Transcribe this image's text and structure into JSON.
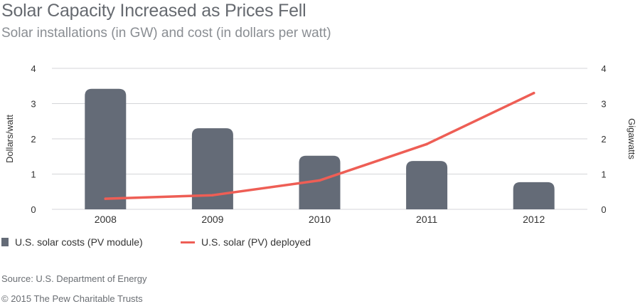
{
  "header": {
    "title": "Solar Capacity Increased as Prices Fell",
    "subtitle": "Solar installations (in GW) and cost (in dollars per watt)"
  },
  "chart_data": {
    "type": "bar",
    "categories": [
      "2008",
      "2009",
      "2010",
      "2011",
      "2012"
    ],
    "series": [
      {
        "name": "U.S. solar costs (PV module)",
        "type": "bar",
        "axis": "left",
        "color": "#646b77",
        "values": [
          3.42,
          2.3,
          1.52,
          1.37,
          0.77
        ]
      },
      {
        "name": "U.S. solar (PV) deployed",
        "type": "line",
        "axis": "right",
        "color": "#ee5e55",
        "values": [
          0.3,
          0.4,
          0.82,
          1.85,
          3.3
        ]
      }
    ],
    "y_left": {
      "label": "Dollars/watt",
      "range": [
        0,
        4
      ],
      "ticks": [
        "0",
        "1",
        "2",
        "3",
        "4"
      ]
    },
    "y_right": {
      "label": "Gigawatts",
      "range": [
        0,
        4
      ],
      "ticks": [
        "0",
        "1",
        "2",
        "3",
        "4"
      ]
    },
    "grid": true,
    "legend_placement": "bottom-left"
  },
  "footer": {
    "source": "Source: U.S. Department of Energy",
    "copyright": "© 2015 The Pew Charitable Trusts"
  }
}
